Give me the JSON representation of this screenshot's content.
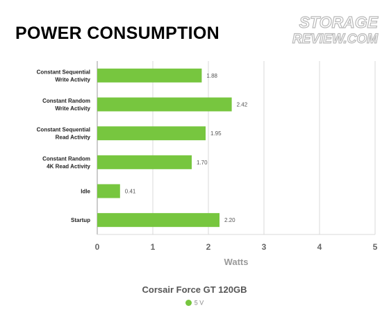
{
  "title": "POWER CONSUMPTION",
  "logo": {
    "line1": "STORAGE",
    "line2": "REVIEW.COM"
  },
  "colors": {
    "bar": "#77c63f",
    "grid": "#d8d8d8",
    "axis": "#999999",
    "tick_text": "#666666",
    "label_text": "#222222",
    "value_text": "#555555"
  },
  "chart_data": {
    "type": "bar",
    "orientation": "horizontal",
    "categories": [
      "Constant Sequential\nWrite Activity",
      "Constant Random\nWrite Activity",
      "Constant Sequential\nRead Activity",
      "Constant Random\n4K Read Activity",
      "Idle",
      "Startup"
    ],
    "series": [
      {
        "name": "5 V",
        "values": [
          1.88,
          2.42,
          1.95,
          1.7,
          0.41,
          2.2
        ]
      }
    ],
    "value_labels": [
      "1.88",
      "2.42",
      "1.95",
      "1.70",
      "0.41",
      "2.20"
    ],
    "xlabel": "Watts",
    "xlim": [
      0,
      5
    ],
    "xticks": [
      "0",
      "1",
      "2",
      "3",
      "4",
      "5"
    ],
    "grid": true,
    "legend": {
      "title": "Corsair Force GT 120GB",
      "position": "bottom"
    }
  }
}
